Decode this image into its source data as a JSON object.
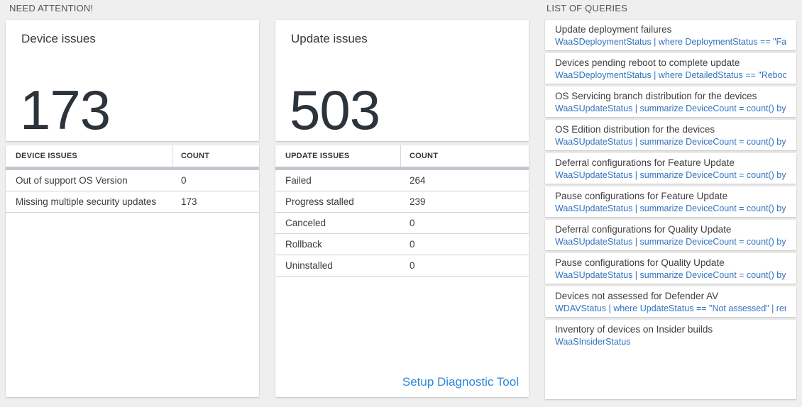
{
  "sections": {
    "need_attention_label": "NEED ATTENTION!",
    "queries_label": "LIST OF QUERIES"
  },
  "device_card": {
    "title": "Device issues",
    "count": "173",
    "table": {
      "header_label": "DEVICE ISSUES",
      "header_count": "COUNT",
      "rows": [
        {
          "label": "Out of support OS Version",
          "count": "0"
        },
        {
          "label": "Missing multiple security updates",
          "count": "173"
        }
      ]
    }
  },
  "update_card": {
    "title": "Update issues",
    "count": "503",
    "table": {
      "header_label": "UPDATE ISSUES",
      "header_count": "COUNT",
      "rows": [
        {
          "label": "Failed",
          "count": "264"
        },
        {
          "label": "Progress stalled",
          "count": "239"
        },
        {
          "label": "Canceled",
          "count": "0"
        },
        {
          "label": "Rollback",
          "count": "0"
        },
        {
          "label": "Uninstalled",
          "count": "0"
        }
      ]
    },
    "footer_link": "Setup Diagnostic Tool"
  },
  "queries": {
    "items": [
      {
        "title": "Update deployment failures",
        "query": "WaaSDeploymentStatus | where DeploymentStatus == \"Failed\" |..."
      },
      {
        "title": "Devices pending reboot to complete update",
        "query": "WaaSDeploymentStatus | where DetailedStatus == \"Reboot pend..."
      },
      {
        "title": "OS Servicing branch distribution for the devices",
        "query": "WaaSUpdateStatus | summarize DeviceCount = count() by OSSer..."
      },
      {
        "title": "OS Edition distribution for the devices",
        "query": "WaaSUpdateStatus | summarize DeviceCount = count() by OSEdit..."
      },
      {
        "title": "Deferral configurations for Feature Update",
        "query": "WaaSUpdateStatus | summarize DeviceCount = count() by Featur..."
      },
      {
        "title": "Pause configurations for Feature Update",
        "query": "WaaSUpdateStatus | summarize DeviceCount = count() by Featur..."
      },
      {
        "title": "Deferral configurations for Quality Update",
        "query": "WaaSUpdateStatus | summarize DeviceCount = count() by Qualit..."
      },
      {
        "title": "Pause configurations for Quality Update",
        "query": "WaaSUpdateStatus | summarize DeviceCount = count() by Qualit..."
      },
      {
        "title": "Devices not assessed for Defender AV",
        "query": "WDAVStatus | where UpdateStatus == \"Not assessed\" | render ta..."
      },
      {
        "title": "Inventory of devices on Insider builds",
        "query": "WaaSInsiderStatus"
      }
    ]
  },
  "colors": {
    "page_bg": "#efefef",
    "query_link_blue": "#3273c0",
    "setup_link_blue": "#2b87d8",
    "big_number_color": "#2d333b",
    "thick_bar_gray": "#c3c7cd"
  }
}
